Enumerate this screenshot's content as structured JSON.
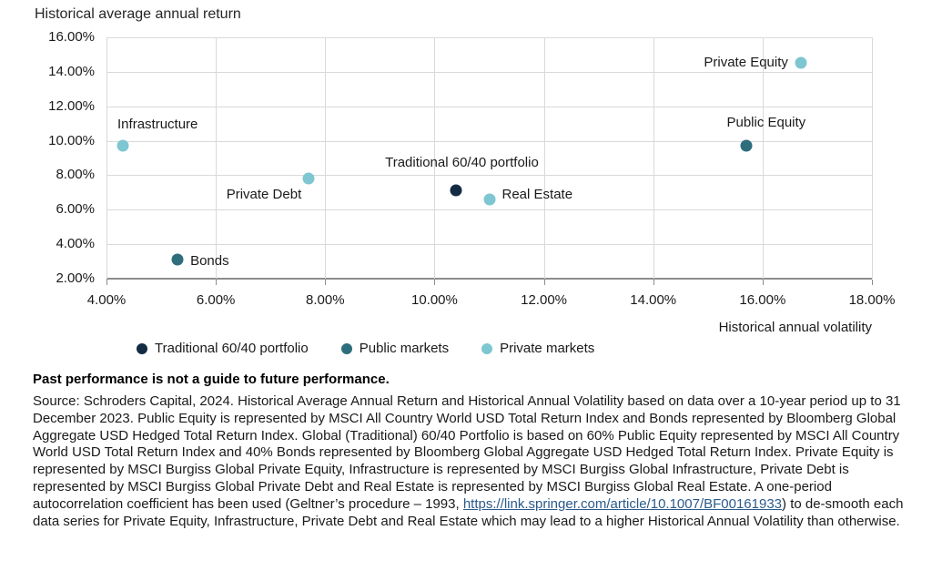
{
  "title": "Historical average annual return",
  "colors": {
    "navy": "#132B43",
    "teal": "#2E6D7C",
    "light_blue": "#7EC6D1",
    "gridline": "#D9D9D9",
    "axis": "#8C8C8C",
    "link": "#2A5A8C"
  },
  "chart_data": {
    "type": "scatter",
    "title": "Historical average annual return",
    "xlabel": "Historical annual volatility",
    "ylabel": "Historical average annual return",
    "xlim": [
      4,
      18
    ],
    "ylim": [
      2,
      16
    ],
    "grid": true,
    "legend_position": "bottom",
    "x_tick_values": [
      4,
      6,
      8,
      10,
      12,
      14,
      16,
      18
    ],
    "x_tick_labels": [
      "4.00%",
      "6.00%",
      "8.00%",
      "10.00%",
      "12.00%",
      "14.00%",
      "16.00%",
      "18.00%"
    ],
    "y_tick_values": [
      16,
      14,
      12,
      10,
      8,
      6,
      4,
      2
    ],
    "y_tick_labels": [
      "16.00%",
      "14.00%",
      "12.00%",
      "10.00%",
      "8.00%",
      "6.00%",
      "4.00%",
      "2.00%"
    ],
    "series": [
      {
        "name": "Traditional 60/40 portfolio",
        "color": "#132B43",
        "points": [
          {
            "label": "Traditional 60/40 portfolio",
            "x": 10.4,
            "y": 7.1,
            "label_position": "above",
            "label_dx": 6,
            "label_dy": -5
          }
        ]
      },
      {
        "name": "Public markets",
        "color": "#2E6D7C",
        "points": [
          {
            "label": "Bonds",
            "x": 5.3,
            "y": 3.1,
            "label_position": "right",
            "label_dx": 0,
            "label_dy": 2
          },
          {
            "label": "Public Equity",
            "x": 15.7,
            "y": 9.7,
            "label_position": "above",
            "label_dx": 22,
            "label_dy": 0
          }
        ]
      },
      {
        "name": "Private markets",
        "color": "#7EC6D1",
        "points": [
          {
            "label": "Infrastructure",
            "x": 4.3,
            "y": 9.7,
            "label_position": "above-left",
            "label_dx": -6,
            "label_dy": 0
          },
          {
            "label": "Private Debt",
            "x": 7.7,
            "y": 7.8,
            "label_position": "below-left",
            "label_dx": 0,
            "label_dy": 0
          },
          {
            "label": "Real Estate",
            "x": 11.0,
            "y": 6.6,
            "label_position": "right",
            "label_dx": 0,
            "label_dy": -5
          },
          {
            "label": "Private Equity",
            "x": 16.7,
            "y": 14.5,
            "label_position": "left",
            "label_dx": 0,
            "label_dy": 0
          }
        ]
      }
    ]
  },
  "legend": {
    "items": [
      {
        "label": "Traditional 60/40 portfolio",
        "color": "#132B43"
      },
      {
        "label": "Public markets",
        "color": "#2E6D7C"
      },
      {
        "label": "Private markets",
        "color": "#7EC6D1"
      }
    ]
  },
  "footer": {
    "bold_note": "Past performance is not a guide to future performance.",
    "source_before_link": "Source: Schroders Capital, 2024. Historical Average Annual Return and Historical Annual Volatility based on data over a 10-year period up to 31 December 2023. Public Equity is represented by MSCI All Country World USD Total Return Index and Bonds represented by Bloomberg Global Aggregate USD Hedged Total Return Index. Global (Traditional) 60/40 Portfolio is based on 60% Public Equity represented by MSCI All Country World USD Total Return Index and 40% Bonds represented by Bloomberg Global Aggregate USD Hedged Total Return Index. Private Equity is represented by MSCI Burgiss Global Private Equity, Infrastructure is represented by MSCI Burgiss Global Infrastructure, Private Debt is represented by MSCI Burgiss Global Private Debt and Real Estate is represented by MSCI Burgiss Global Real Estate. A one-period autocorrelation coefficient has been used (Geltner’s procedure – 1993, ",
    "link_text": "https://link.springer.com/article/10.1007/BF00161933",
    "source_after_link": ") to de-smooth each data series for Private Equity, Infrastructure, Private Debt and Real Estate which may lead to a higher Historical Annual Volatility than otherwise."
  }
}
